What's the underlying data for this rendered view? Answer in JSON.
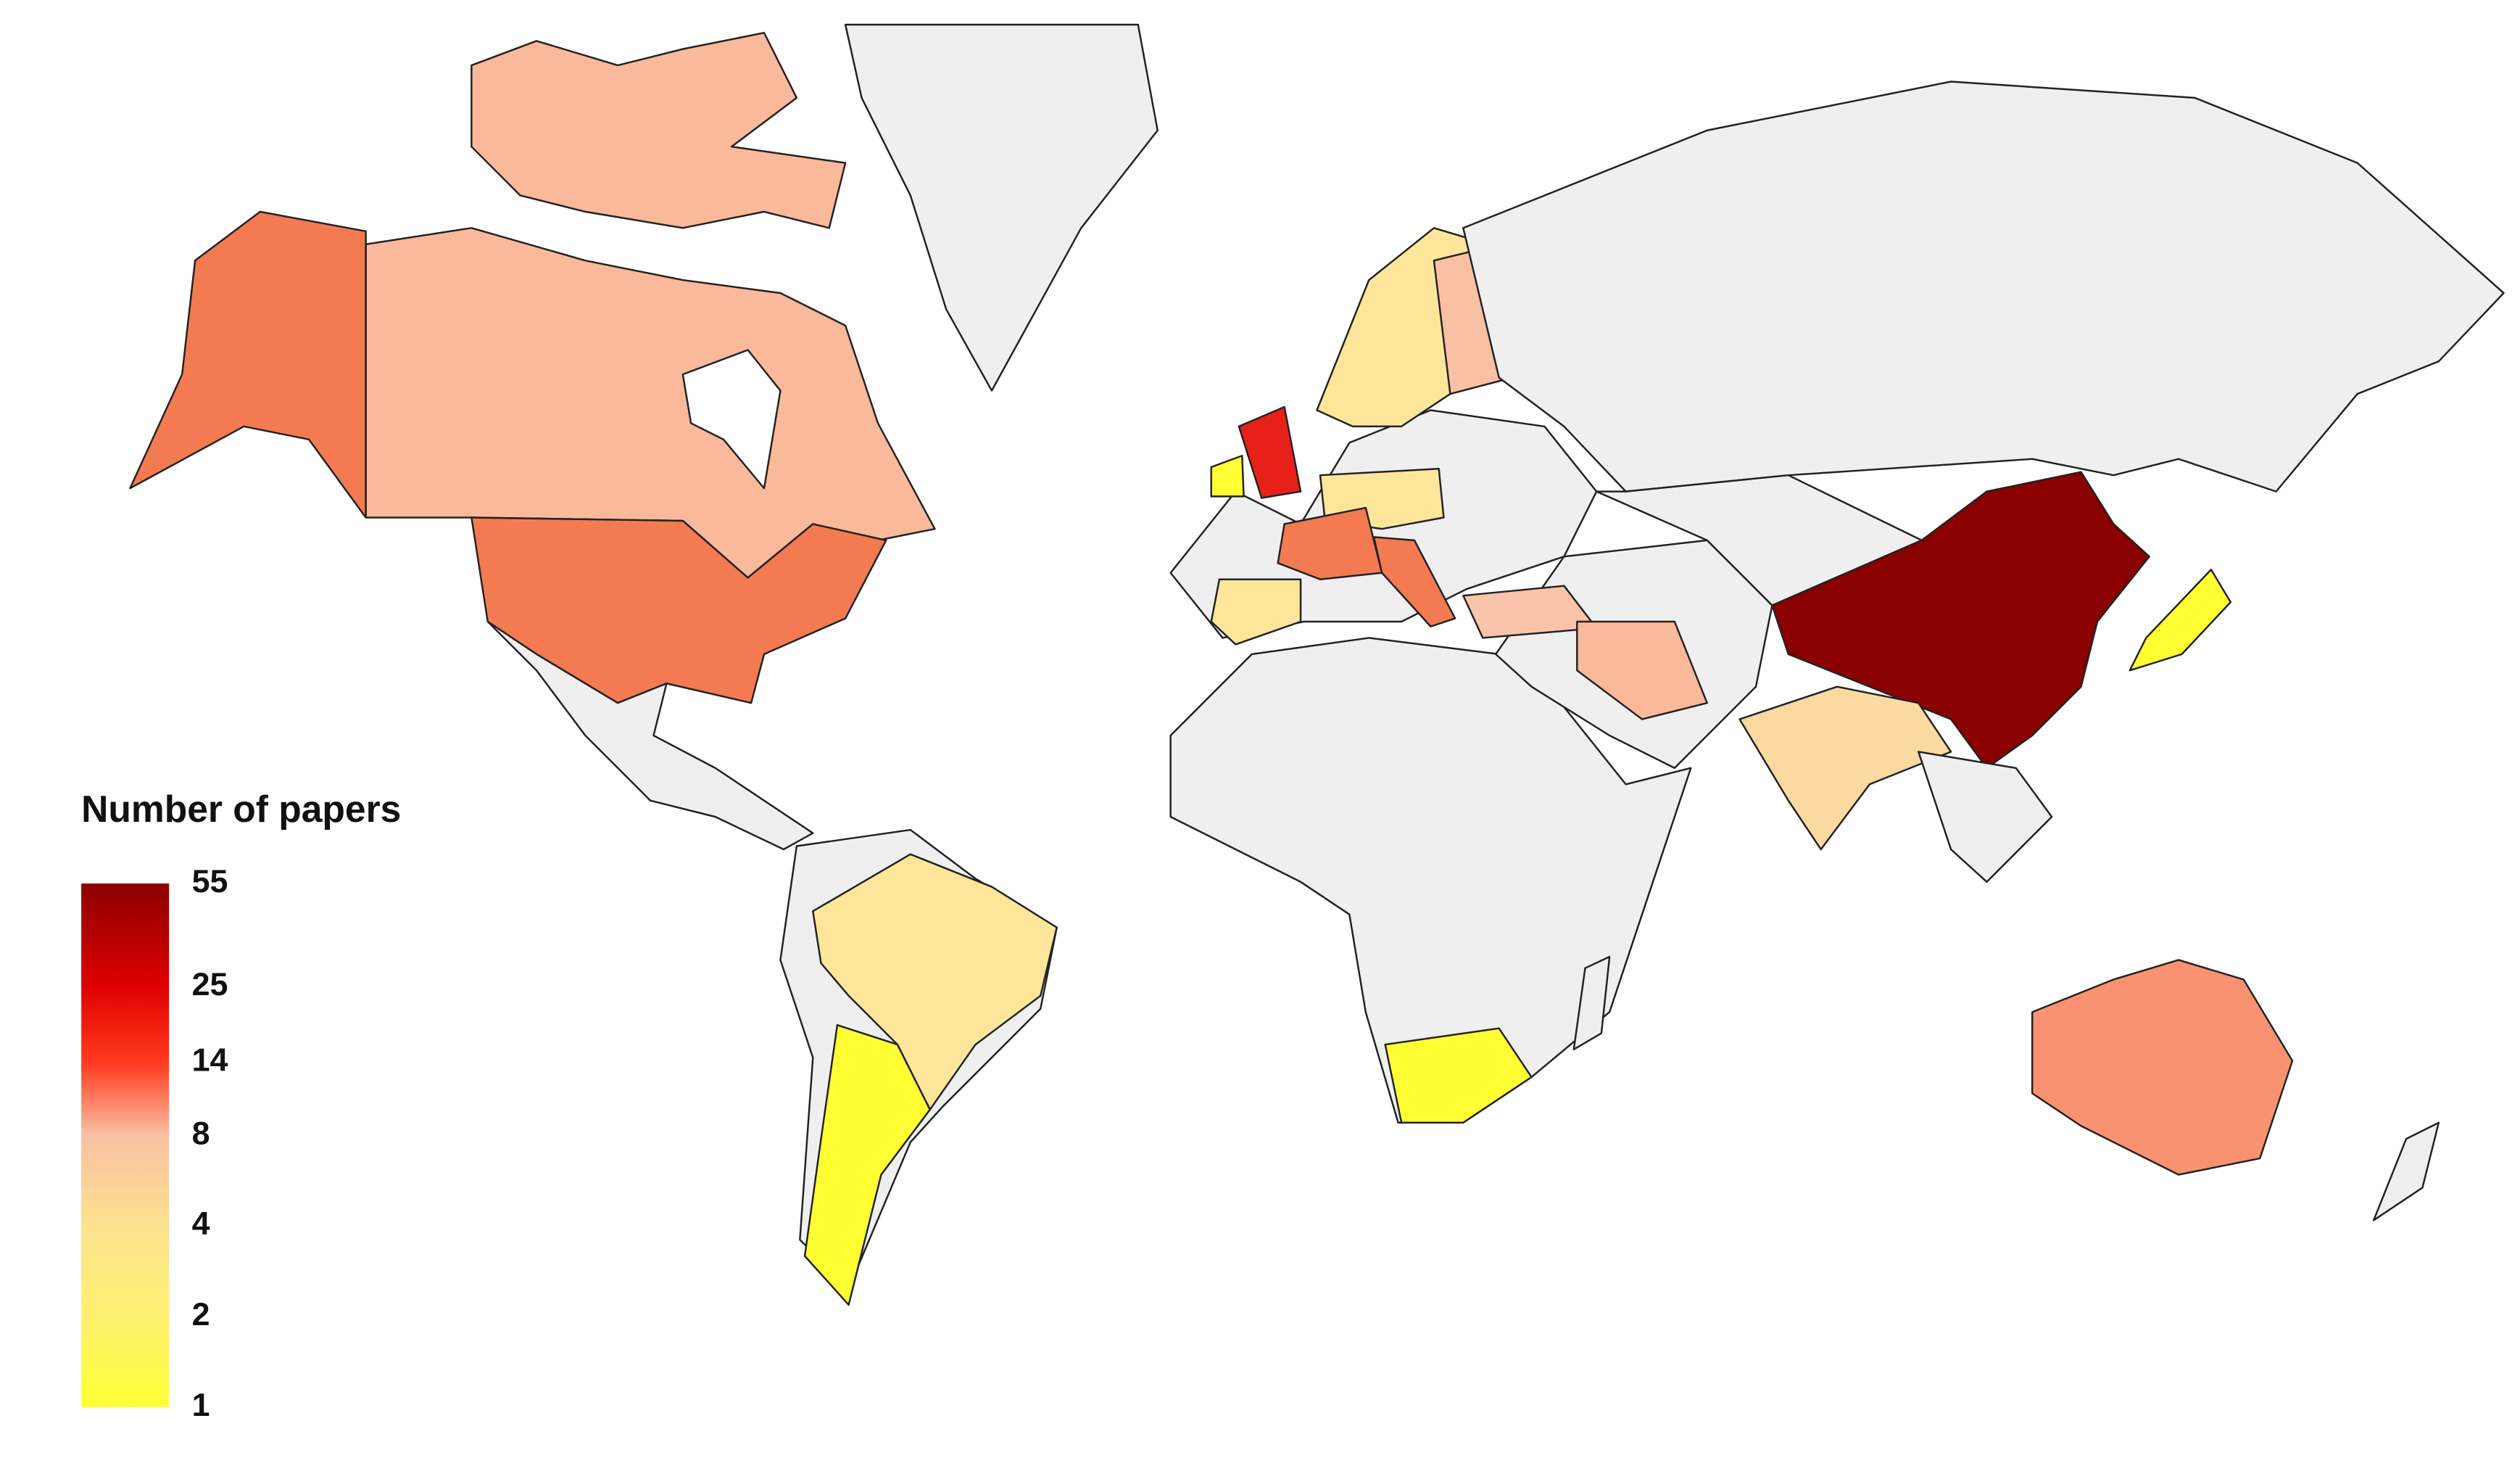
{
  "map": {
    "legend": {
      "title": "Number of papers",
      "ticks": [
        55,
        25,
        14,
        8,
        4,
        2,
        1
      ],
      "colors": [
        "#8b0000",
        "#e00000",
        "#ff3a1e",
        "#f9c0a4",
        "#fde28f",
        "#fdf070",
        "#ffff33"
      ],
      "lim": [
        1,
        55
      ],
      "log_scale": true
    }
  }
}
